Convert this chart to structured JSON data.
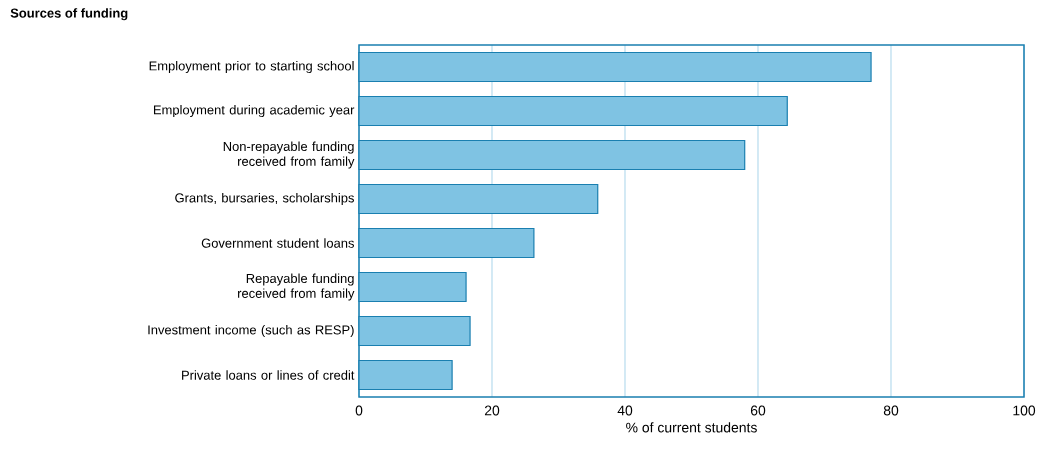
{
  "chart_data": {
    "type": "bar",
    "orientation": "horizontal",
    "title": "Sources of funding",
    "xlabel": "% of current students",
    "categories": [
      "Employment prior to starting school",
      "Employment during academic year",
      "Non-repayable funding received from family",
      "Grants, bursaries, scholarships",
      "Government student loans",
      "Repayable funding received from family",
      "Investment income (such as RESP)",
      "Private loans or lines of credit"
    ],
    "values": [
      77,
      64.4,
      58,
      35.9,
      26.3,
      16.1,
      16.7,
      14
    ],
    "color": "#7fc3e3",
    "xlim": [
      0,
      100
    ],
    "xticks": [
      0,
      20,
      40,
      60,
      80,
      100
    ],
    "grid": "x"
  }
}
